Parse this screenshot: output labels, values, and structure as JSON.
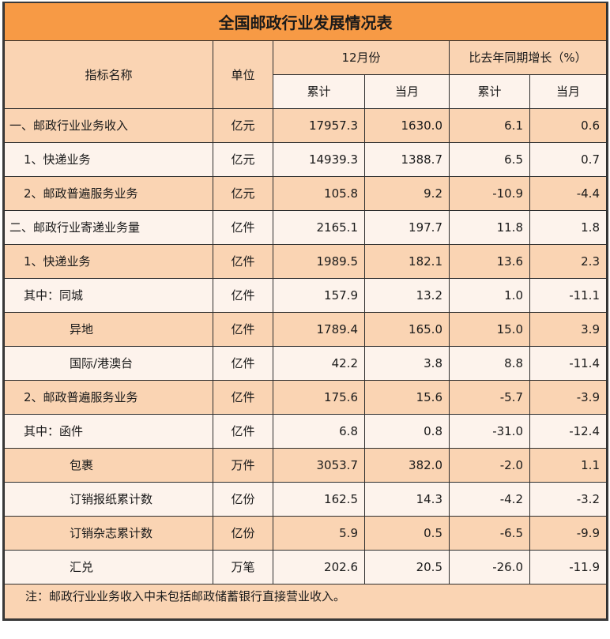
{
  "title": "全国邮政行业发展情况表",
  "header": {
    "name": "指标名称",
    "unit": "单位",
    "group_month": "12月份",
    "group_growth": "比去年同期增长（%）",
    "cumulative": "累计",
    "current_month": "当月"
  },
  "rows": [
    {
      "name": "一、邮政行业业务收入",
      "indent": 0,
      "unit": "亿元",
      "cum": "17957.3",
      "month": "1630.0",
      "g_cum": "6.1",
      "g_month": "0.6"
    },
    {
      "name": "1、快递业务",
      "indent": 1,
      "unit": "亿元",
      "cum": "14939.3",
      "month": "1388.7",
      "g_cum": "6.5",
      "g_month": "0.7"
    },
    {
      "name": "2、邮政普遍服务业务",
      "indent": 1,
      "unit": "亿元",
      "cum": "105.8",
      "month": "9.2",
      "g_cum": "-10.9",
      "g_month": "-4.4"
    },
    {
      "name": "二、邮政行业寄递业务量",
      "indent": 0,
      "unit": "亿件",
      "cum": "2165.1",
      "month": "197.7",
      "g_cum": "11.8",
      "g_month": "1.8"
    },
    {
      "name": "1、快递业务",
      "indent": 1,
      "unit": "亿件",
      "cum": "1989.5",
      "month": "182.1",
      "g_cum": "13.6",
      "g_month": "2.3"
    },
    {
      "name": "其中：同城",
      "indent": 1,
      "unit": "亿件",
      "cum": "157.9",
      "month": "13.2",
      "g_cum": "1.0",
      "g_month": "-11.1"
    },
    {
      "name": "异地",
      "indent": 2,
      "unit": "亿件",
      "cum": "1789.4",
      "month": "165.0",
      "g_cum": "15.0",
      "g_month": "3.9"
    },
    {
      "name": "国际/港澳台",
      "indent": 2,
      "unit": "亿件",
      "cum": "42.2",
      "month": "3.8",
      "g_cum": "8.8",
      "g_month": "-11.4"
    },
    {
      "name": "2、邮政普遍服务业务",
      "indent": 1,
      "unit": "亿件",
      "cum": "175.6",
      "month": "15.6",
      "g_cum": "-5.7",
      "g_month": "-3.9"
    },
    {
      "name": "其中：函件",
      "indent": 1,
      "unit": "亿件",
      "cum": "6.8",
      "month": "0.8",
      "g_cum": "-31.0",
      "g_month": "-12.4"
    },
    {
      "name": "包裹",
      "indent": 2,
      "unit": "万件",
      "cum": "3053.7",
      "month": "382.0",
      "g_cum": "-2.0",
      "g_month": "1.1"
    },
    {
      "name": "订销报纸累计数",
      "indent": 2,
      "unit": "亿份",
      "cum": "162.5",
      "month": "14.3",
      "g_cum": "-4.2",
      "g_month": "-3.2"
    },
    {
      "name": "订销杂志累计数",
      "indent": 2,
      "unit": "亿份",
      "cum": "5.9",
      "month": "0.5",
      "g_cum": "-6.5",
      "g_month": "-9.9"
    },
    {
      "name": "汇兑",
      "indent": 2,
      "unit": "万笔",
      "cum": "202.6",
      "month": "20.5",
      "g_cum": "-26.0",
      "g_month": "-11.9"
    }
  ],
  "footnote": "注：邮政行业业务收入中未包括邮政储蓄银行直接营业收入。",
  "colors": {
    "title_bg": "#F79A45",
    "row_peach": "#FAD4B3",
    "row_light": "#FDF3EC"
  }
}
